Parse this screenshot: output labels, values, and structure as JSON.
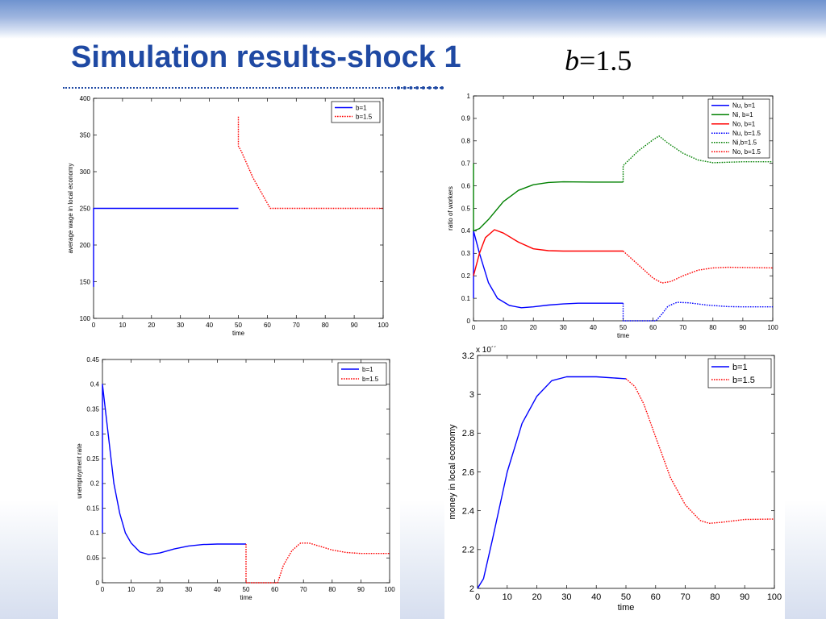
{
  "slide": {
    "title": "Simulation results-shock 1",
    "formula_var": "b",
    "formula_rest": "=1.5"
  },
  "chart_data": [
    {
      "type": "line",
      "xlabel": "time",
      "ylabel": "average wage in local economy",
      "xlim": [
        0,
        100
      ],
      "ylim": [
        100,
        400
      ],
      "xticks": [
        0,
        10,
        20,
        30,
        40,
        50,
        60,
        70,
        80,
        90,
        100
      ],
      "yticks": [
        100,
        150,
        200,
        250,
        300,
        350,
        400
      ],
      "legend": "top-right",
      "series": [
        {
          "name": "b=1",
          "color": "#0000ff",
          "style": "solid",
          "points": [
            [
              0,
              143
            ],
            [
              0,
              250
            ],
            [
              50,
              250
            ]
          ]
        },
        {
          "name": "b=1.5",
          "color": "#ff0000",
          "style": "dotted",
          "points": [
            [
              50,
              375
            ],
            [
              50,
              335
            ],
            [
              51,
              328
            ],
            [
              55,
              292
            ],
            [
              61,
              250
            ],
            [
              100,
              250
            ]
          ]
        }
      ]
    },
    {
      "type": "line",
      "xlabel": "time",
      "ylabel": "ratio of workers",
      "xlim": [
        0,
        100
      ],
      "ylim": [
        0,
        1
      ],
      "xticks": [
        0,
        10,
        20,
        30,
        40,
        50,
        60,
        70,
        80,
        90,
        100
      ],
      "yticks": [
        0,
        0.1,
        0.2,
        0.3,
        0.4,
        0.5,
        0.6,
        0.7,
        0.8,
        0.9,
        1
      ],
      "legend": "top-right",
      "series": [
        {
          "name": "Nu, b=1",
          "color": "#0000ff",
          "style": "solid",
          "points": [
            [
              0,
              0.1
            ],
            [
              0,
              0.4
            ],
            [
              2,
              0.3
            ],
            [
              5,
              0.17
            ],
            [
              8,
              0.1
            ],
            [
              12,
              0.068
            ],
            [
              16,
              0.058
            ],
            [
              20,
              0.062
            ],
            [
              25,
              0.07
            ],
            [
              30,
              0.075
            ],
            [
              35,
              0.078
            ],
            [
              40,
              0.078
            ],
            [
              50,
              0.078
            ]
          ]
        },
        {
          "name": "Ni, b=1",
          "color": "#008000",
          "style": "solid",
          "points": [
            [
              0,
              0.7
            ],
            [
              0,
              0.4
            ],
            [
              2,
              0.41
            ],
            [
              5,
              0.45
            ],
            [
              10,
              0.53
            ],
            [
              15,
              0.58
            ],
            [
              20,
              0.605
            ],
            [
              25,
              0.615
            ],
            [
              30,
              0.618
            ],
            [
              40,
              0.617
            ],
            [
              50,
              0.617
            ]
          ]
        },
        {
          "name": "No, b=1",
          "color": "#ff0000",
          "style": "solid",
          "points": [
            [
              0,
              0.2
            ],
            [
              2,
              0.3
            ],
            [
              4,
              0.37
            ],
            [
              7,
              0.405
            ],
            [
              10,
              0.39
            ],
            [
              15,
              0.35
            ],
            [
              20,
              0.32
            ],
            [
              25,
              0.312
            ],
            [
              30,
              0.31
            ],
            [
              50,
              0.31
            ]
          ]
        },
        {
          "name": "Nu, b=1.5",
          "color": "#0000ff",
          "style": "dotted",
          "points": [
            [
              50,
              0.078
            ],
            [
              50,
              0.0
            ],
            [
              61,
              0.0
            ],
            [
              63,
              0.03
            ],
            [
              65,
              0.065
            ],
            [
              68,
              0.082
            ],
            [
              72,
              0.08
            ],
            [
              78,
              0.07
            ],
            [
              85,
              0.063
            ],
            [
              90,
              0.062
            ],
            [
              100,
              0.062
            ]
          ]
        },
        {
          "name": "Ni,b=1.5",
          "color": "#008000",
          "style": "dotted",
          "points": [
            [
              50,
              0.617
            ],
            [
              50,
              0.69
            ],
            [
              55,
              0.755
            ],
            [
              60,
              0.805
            ],
            [
              62,
              0.822
            ],
            [
              65,
              0.79
            ],
            [
              70,
              0.745
            ],
            [
              75,
              0.715
            ],
            [
              80,
              0.703
            ],
            [
              90,
              0.707
            ],
            [
              100,
              0.707
            ]
          ]
        },
        {
          "name": "No, b=1.5",
          "color": "#ff0000",
          "style": "dotted",
          "points": [
            [
              50,
              0.31
            ],
            [
              55,
              0.25
            ],
            [
              60,
              0.19
            ],
            [
              63,
              0.168
            ],
            [
              66,
              0.175
            ],
            [
              70,
              0.2
            ],
            [
              75,
              0.225
            ],
            [
              80,
              0.235
            ],
            [
              85,
              0.238
            ],
            [
              100,
              0.235
            ]
          ]
        }
      ]
    },
    {
      "type": "line",
      "xlabel": "time",
      "ylabel": "unemployment rate",
      "xlim": [
        0,
        100
      ],
      "ylim": [
        0,
        0.45
      ],
      "xticks": [
        0,
        10,
        20,
        30,
        40,
        50,
        60,
        70,
        80,
        90,
        100
      ],
      "yticks": [
        0,
        0.05,
        0.1,
        0.15,
        0.2,
        0.25,
        0.3,
        0.35,
        0.4,
        0.45
      ],
      "legend": "top-right",
      "series": [
        {
          "name": "b=1",
          "color": "#0000ff",
          "style": "solid",
          "points": [
            [
              0,
              0.1
            ],
            [
              0,
              0.4
            ],
            [
              2,
              0.3
            ],
            [
              4,
              0.2
            ],
            [
              6,
              0.14
            ],
            [
              8,
              0.1
            ],
            [
              10,
              0.08
            ],
            [
              13,
              0.062
            ],
            [
              16,
              0.057
            ],
            [
              20,
              0.06
            ],
            [
              25,
              0.068
            ],
            [
              30,
              0.074
            ],
            [
              35,
              0.077
            ],
            [
              40,
              0.078
            ],
            [
              50,
              0.078
            ]
          ]
        },
        {
          "name": "b=1.5",
          "color": "#ff0000",
          "style": "dotted",
          "points": [
            [
              50,
              0.078
            ],
            [
              50,
              0.0
            ],
            [
              61,
              0.0
            ],
            [
              63,
              0.035
            ],
            [
              66,
              0.065
            ],
            [
              69,
              0.08
            ],
            [
              72,
              0.08
            ],
            [
              76,
              0.073
            ],
            [
              80,
              0.066
            ],
            [
              85,
              0.061
            ],
            [
              90,
              0.059
            ],
            [
              100,
              0.059
            ]
          ]
        }
      ]
    },
    {
      "type": "line",
      "xlabel": "time",
      "ylabel": "money in local economy",
      "y_multiplier": "x 10´´",
      "xlim": [
        0,
        100
      ],
      "ylim": [
        2,
        3.2
      ],
      "xticks": [
        0,
        10,
        20,
        30,
        40,
        50,
        60,
        70,
        80,
        90,
        100
      ],
      "yticks": [
        2,
        2.2,
        2.4,
        2.6,
        2.8,
        3,
        3.2
      ],
      "legend": "top-right",
      "series": [
        {
          "name": "b=1",
          "color": "#0000ff",
          "style": "solid",
          "points": [
            [
              0,
              2.0
            ],
            [
              2,
              2.05
            ],
            [
              5,
              2.25
            ],
            [
              10,
              2.6
            ],
            [
              15,
              2.85
            ],
            [
              20,
              2.99
            ],
            [
              25,
              3.07
            ],
            [
              30,
              3.09
            ],
            [
              40,
              3.09
            ],
            [
              50,
              3.08
            ]
          ]
        },
        {
          "name": "b=1.5",
          "color": "#ff0000",
          "style": "dotted",
          "points": [
            [
              50,
              3.08
            ],
            [
              53,
              3.04
            ],
            [
              56,
              2.95
            ],
            [
              60,
              2.78
            ],
            [
              65,
              2.57
            ],
            [
              70,
              2.43
            ],
            [
              75,
              2.35
            ],
            [
              78,
              2.335
            ],
            [
              82,
              2.34
            ],
            [
              90,
              2.355
            ],
            [
              100,
              2.357
            ]
          ]
        }
      ]
    }
  ]
}
